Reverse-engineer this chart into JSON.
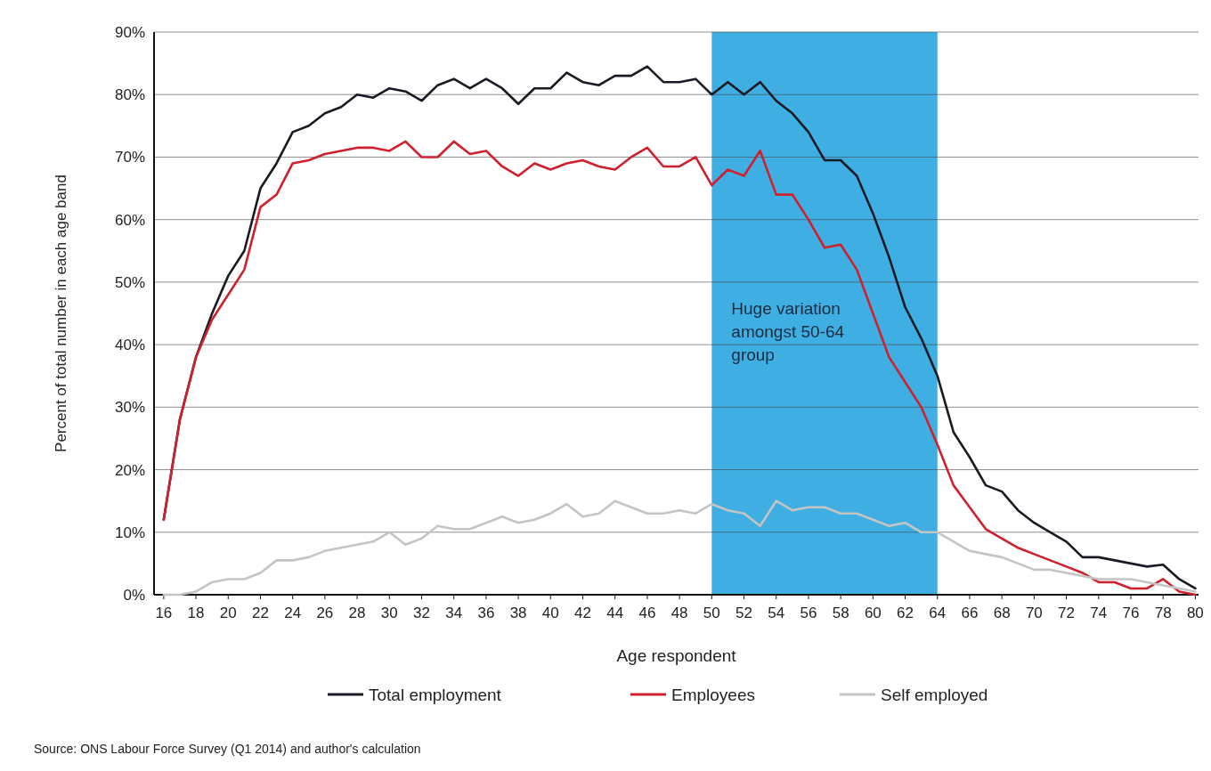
{
  "chart_data": {
    "type": "line",
    "xlabel": "Age respondent",
    "ylabel": "Percent of total number in each age band",
    "x": [
      16,
      17,
      18,
      19,
      20,
      21,
      22,
      23,
      24,
      25,
      26,
      27,
      28,
      29,
      30,
      31,
      32,
      33,
      34,
      35,
      36,
      37,
      38,
      39,
      40,
      41,
      42,
      43,
      44,
      45,
      46,
      47,
      48,
      49,
      50,
      51,
      52,
      53,
      54,
      55,
      56,
      57,
      58,
      59,
      60,
      61,
      62,
      63,
      64,
      65,
      66,
      67,
      68,
      69,
      70,
      71,
      72,
      73,
      74,
      75,
      76,
      77,
      78,
      79,
      80
    ],
    "series": [
      {
        "name": "Total employment",
        "color": "#1a1a24",
        "values": [
          12,
          28,
          38,
          45,
          51,
          55,
          65,
          69,
          74,
          75,
          77,
          78,
          80,
          79.5,
          81,
          80.5,
          79,
          81.5,
          82.5,
          81,
          82.5,
          81,
          78.5,
          81,
          81,
          83.5,
          82,
          81.5,
          83,
          83,
          84.5,
          82,
          82,
          82.5,
          80,
          82,
          80,
          82,
          79,
          77,
          74,
          69.5,
          69.5,
          67,
          61,
          54,
          46,
          41,
          35,
          26,
          22,
          17.5,
          16.5,
          13.5,
          11.5,
          10,
          8.5,
          6,
          6,
          5.5,
          5,
          4.5,
          4.8,
          2.5,
          1
        ]
      },
      {
        "name": "Employees",
        "color": "#d0202e",
        "values": [
          12,
          28,
          38,
          44,
          48,
          52,
          62,
          64,
          69,
          69.5,
          70.5,
          71,
          71.5,
          71.5,
          71,
          72.5,
          70,
          70,
          72.5,
          70.5,
          71,
          68.5,
          67,
          69,
          68,
          69,
          69.5,
          68.5,
          68,
          70,
          71.5,
          68.5,
          68.5,
          70,
          65.5,
          68,
          67,
          71,
          64,
          64,
          60,
          55.5,
          56,
          52,
          45,
          38,
          34,
          30,
          24,
          17.5,
          14,
          10.5,
          9,
          7.5,
          6.5,
          5.5,
          4.5,
          3.5,
          2,
          2,
          1,
          1,
          2.5,
          0.5,
          0
        ]
      },
      {
        "name": "Self employed",
        "color": "#c4c4c4",
        "values": [
          0,
          0,
          0.5,
          2,
          2.5,
          2.5,
          3.5,
          5.5,
          5.5,
          6,
          7,
          7.5,
          8,
          8.5,
          10,
          8,
          9,
          11,
          10.5,
          10.5,
          11.5,
          12.5,
          11.5,
          12,
          13,
          14.5,
          12.5,
          13,
          15,
          14,
          13,
          13,
          13.5,
          13,
          14.5,
          13.5,
          13,
          11,
          15,
          13.5,
          14,
          14,
          13,
          13,
          12,
          11,
          11.5,
          10,
          10,
          8.5,
          7,
          6.5,
          6,
          5,
          4,
          4,
          3.5,
          3,
          2.5,
          2.5,
          2.5,
          2,
          1.5,
          1,
          0.5
        ]
      }
    ],
    "xlim": [
      15.4,
      80.2
    ],
    "xticks": [
      16,
      18,
      20,
      22,
      24,
      26,
      28,
      30,
      32,
      34,
      36,
      38,
      40,
      42,
      44,
      46,
      48,
      50,
      52,
      54,
      56,
      58,
      60,
      62,
      64,
      66,
      68,
      70,
      72,
      74,
      76,
      78,
      80
    ],
    "ylim": [
      0,
      90
    ],
    "yticks": [
      {
        "value": 0,
        "label": "0%"
      },
      {
        "value": 10,
        "label": "10%"
      },
      {
        "value": 20,
        "label": "20%"
      },
      {
        "value": 30,
        "label": "30%"
      },
      {
        "value": 40,
        "label": "40%"
      },
      {
        "value": 50,
        "label": "50%"
      },
      {
        "value": 60,
        "label": "60%"
      },
      {
        "value": 70,
        "label": "70%"
      },
      {
        "value": 80,
        "label": "80%"
      },
      {
        "value": 90,
        "label": "90%"
      }
    ],
    "grid": "y",
    "legend": "bottom",
    "marker": "none",
    "line_style": "solid",
    "bands": [
      {
        "axis": "x",
        "from": 50,
        "to": 64,
        "label": "Huge variation amongst 50-64 group",
        "color": "#2aa6e0"
      }
    ],
    "annotations": [
      "Source: ONS Labour Force Survey (Q1 2014) and author's calculation"
    ]
  }
}
